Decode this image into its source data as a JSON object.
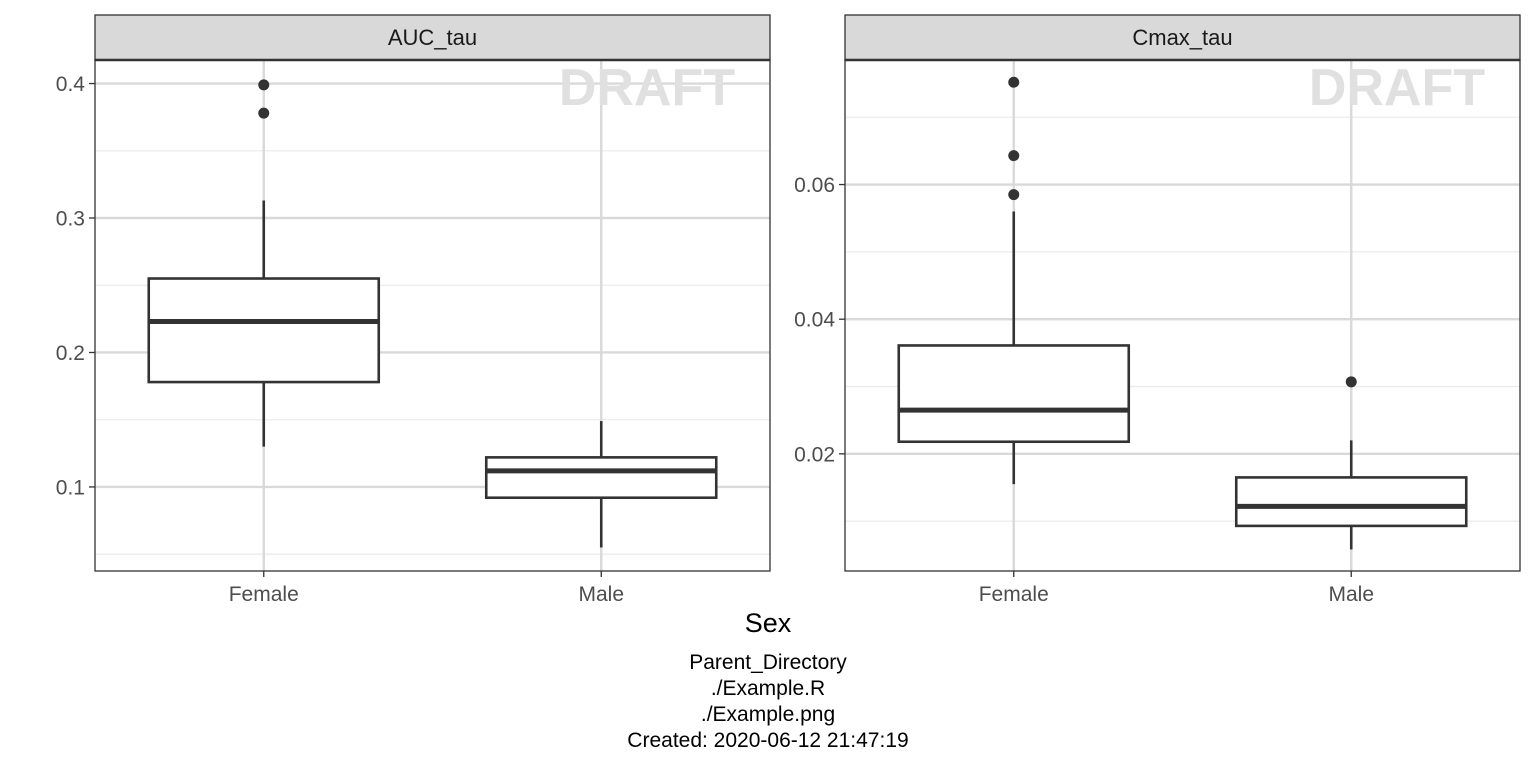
{
  "chart_data": {
    "type": "boxplot",
    "xlabel": "Sex",
    "categories": [
      "Female",
      "Male"
    ],
    "watermark": "DRAFT",
    "grid": true,
    "panels": [
      {
        "strip_label": "AUC_tau",
        "ylim": [
          0.0375,
          0.4175
        ],
        "y_ticks": [
          0.1,
          0.2,
          0.3,
          0.4
        ],
        "y_tick_labels": [
          "0.1",
          "0.2",
          "0.3",
          "0.4"
        ],
        "y_minor_ticks": [
          0.05,
          0.15,
          0.25,
          0.35
        ],
        "boxes": [
          {
            "category": "Female",
            "whisker_low": 0.13,
            "q1": 0.178,
            "median": 0.223,
            "q3": 0.255,
            "whisker_high": 0.313,
            "outliers": [
              0.378,
              0.399
            ]
          },
          {
            "category": "Male",
            "whisker_low": 0.055,
            "q1": 0.092,
            "median": 0.112,
            "q3": 0.122,
            "whisker_high": 0.149,
            "outliers": []
          }
        ]
      },
      {
        "strip_label": "Cmax_tau",
        "ylim": [
          0.0026,
          0.0785
        ],
        "y_ticks": [
          0.02,
          0.04,
          0.06
        ],
        "y_tick_labels": [
          "0.02",
          "0.04",
          "0.06"
        ],
        "y_minor_ticks": [
          0.01,
          0.03,
          0.05,
          0.07
        ],
        "boxes": [
          {
            "category": "Female",
            "whisker_low": 0.0155,
            "q1": 0.0218,
            "median": 0.0265,
            "q3": 0.0361,
            "whisker_high": 0.056,
            "outliers": [
              0.0585,
              0.0643,
              0.0752
            ]
          },
          {
            "category": "Male",
            "whisker_low": 0.0058,
            "q1": 0.0093,
            "median": 0.0122,
            "q3": 0.0165,
            "whisker_high": 0.022,
            "outliers": [
              0.0307
            ]
          }
        ]
      }
    ]
  },
  "footer": {
    "line1": "Parent_Directory",
    "line2": "./Example.R",
    "line3": "./Example.png",
    "line4": "Created: 2020-06-12 21:47:19"
  }
}
